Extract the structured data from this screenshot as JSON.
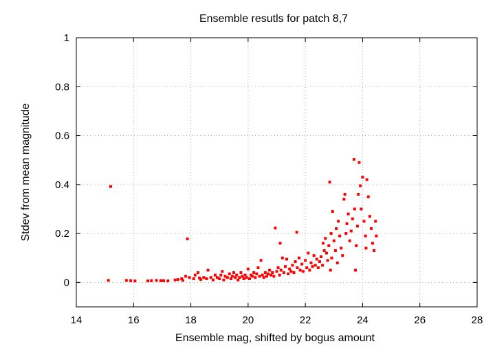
{
  "chart_data": {
    "type": "scatter",
    "title": "Ensemble resutls for patch 8,7",
    "xlabel": "Ensemble mag, shifted by bogus amount",
    "ylabel": "Stdev from mean magnitude",
    "xlim": [
      14,
      28
    ],
    "ylim": [
      -0.1,
      1
    ],
    "xticks": [
      14,
      16,
      18,
      20,
      22,
      24,
      26,
      28
    ],
    "yticks": [
      0,
      0.2,
      0.4,
      0.6,
      0.8,
      1
    ],
    "ytick_labels": [
      "0",
      "0.2",
      "0.4",
      "0.6",
      "0.8",
      "1"
    ],
    "grid": true,
    "marker_color": "#ff0000",
    "series": [
      {
        "points": [
          [
            15.12,
            0.008
          ],
          [
            15.2,
            0.392
          ],
          [
            15.75,
            0.008
          ],
          [
            15.9,
            0.007
          ],
          [
            16.05,
            0.006
          ],
          [
            16.5,
            0.006
          ],
          [
            16.62,
            0.007
          ],
          [
            16.8,
            0.008
          ],
          [
            16.95,
            0.007
          ],
          [
            17.05,
            0.007
          ],
          [
            17.2,
            0.006
          ],
          [
            17.45,
            0.01
          ],
          [
            17.55,
            0.012
          ],
          [
            17.68,
            0.015
          ],
          [
            17.72,
            0.008
          ],
          [
            17.82,
            0.025
          ],
          [
            17.88,
            0.178
          ],
          [
            17.95,
            0.02
          ],
          [
            18.1,
            0.015
          ],
          [
            18.15,
            0.03
          ],
          [
            18.25,
            0.04
          ],
          [
            18.3,
            0.018
          ],
          [
            18.35,
            0.012
          ],
          [
            18.45,
            0.02
          ],
          [
            18.55,
            0.015
          ],
          [
            18.6,
            0.05
          ],
          [
            18.7,
            0.02
          ],
          [
            18.78,
            0.01
          ],
          [
            18.85,
            0.03
          ],
          [
            18.92,
            0.02
          ],
          [
            19.0,
            0.015
          ],
          [
            19.05,
            0.03
          ],
          [
            19.1,
            0.045
          ],
          [
            19.15,
            0.01
          ],
          [
            19.2,
            0.025
          ],
          [
            19.28,
            0.02
          ],
          [
            19.35,
            0.035
          ],
          [
            19.4,
            0.015
          ],
          [
            19.45,
            0.025
          ],
          [
            19.5,
            0.04
          ],
          [
            19.55,
            0.02
          ],
          [
            19.6,
            0.03
          ],
          [
            19.65,
            0.01
          ],
          [
            19.7,
            0.02
          ],
          [
            19.75,
            0.04
          ],
          [
            19.8,
            0.025
          ],
          [
            19.85,
            0.015
          ],
          [
            19.9,
            0.03
          ],
          [
            19.95,
            0.02
          ],
          [
            20.0,
            0.055
          ],
          [
            20.05,
            0.015
          ],
          [
            20.1,
            0.03
          ],
          [
            20.15,
            0.025
          ],
          [
            20.2,
            0.04
          ],
          [
            20.25,
            0.02
          ],
          [
            20.3,
            0.035
          ],
          [
            20.35,
            0.06
          ],
          [
            20.4,
            0.025
          ],
          [
            20.45,
            0.09
          ],
          [
            20.5,
            0.03
          ],
          [
            20.55,
            0.02
          ],
          [
            20.6,
            0.04
          ],
          [
            20.65,
            0.025
          ],
          [
            20.7,
            0.035
          ],
          [
            20.75,
            0.05
          ],
          [
            20.8,
            0.03
          ],
          [
            20.85,
            0.04
          ],
          [
            20.9,
            0.025
          ],
          [
            20.95,
            0.222
          ],
          [
            21.0,
            0.045
          ],
          [
            21.05,
            0.06
          ],
          [
            21.1,
            0.03
          ],
          [
            21.12,
            0.16
          ],
          [
            21.15,
            0.05
          ],
          [
            21.2,
            0.1
          ],
          [
            21.25,
            0.04
          ],
          [
            21.3,
            0.065
          ],
          [
            21.35,
            0.095
          ],
          [
            21.4,
            0.035
          ],
          [
            21.45,
            0.055
          ],
          [
            21.5,
            0.045
          ],
          [
            21.55,
            0.07
          ],
          [
            21.6,
            0.04
          ],
          [
            21.65,
            0.085
          ],
          [
            21.7,
            0.205
          ],
          [
            21.72,
            0.06
          ],
          [
            21.78,
            0.1
          ],
          [
            21.82,
            0.05
          ],
          [
            21.88,
            0.075
          ],
          [
            21.92,
            0.045
          ],
          [
            22.0,
            0.09
          ],
          [
            22.05,
            0.06
          ],
          [
            22.1,
            0.12
          ],
          [
            22.15,
            0.05
          ],
          [
            22.2,
            0.08
          ],
          [
            22.25,
            0.065
          ],
          [
            22.3,
            0.11
          ],
          [
            22.35,
            0.07
          ],
          [
            22.4,
            0.095
          ],
          [
            22.45,
            0.06
          ],
          [
            22.5,
            0.085
          ],
          [
            22.55,
            0.105
          ],
          [
            22.6,
            0.07
          ],
          [
            22.62,
            0.16
          ],
          [
            22.66,
            0.13
          ],
          [
            22.7,
            0.18
          ],
          [
            22.74,
            0.12
          ],
          [
            22.78,
            0.09
          ],
          [
            22.82,
            0.15
          ],
          [
            22.85,
            0.41
          ],
          [
            22.88,
            0.05
          ],
          [
            22.9,
            0.2
          ],
          [
            22.92,
            0.1
          ],
          [
            22.95,
            0.29
          ],
          [
            23.0,
            0.17
          ],
          [
            23.05,
            0.13
          ],
          [
            23.08,
            0.22
          ],
          [
            23.12,
            0.08
          ],
          [
            23.15,
            0.25
          ],
          [
            23.2,
            0.19
          ],
          [
            23.25,
            0.14
          ],
          [
            23.3,
            0.11
          ],
          [
            23.35,
            0.34
          ],
          [
            23.38,
            0.36
          ],
          [
            23.42,
            0.2
          ],
          [
            23.45,
            0.24
          ],
          [
            23.5,
            0.28
          ],
          [
            23.55,
            0.17
          ],
          [
            23.6,
            0.21
          ],
          [
            23.65,
            0.26
          ],
          [
            23.7,
            0.503
          ],
          [
            23.72,
            0.3
          ],
          [
            23.75,
            0.05
          ],
          [
            23.78,
            0.15
          ],
          [
            23.82,
            0.23
          ],
          [
            23.85,
            0.36
          ],
          [
            23.88,
            0.49
          ],
          [
            23.92,
            0.395
          ],
          [
            23.95,
            0.3
          ],
          [
            24.0,
            0.43
          ],
          [
            24.05,
            0.25
          ],
          [
            24.1,
            0.19
          ],
          [
            24.12,
            0.14
          ],
          [
            24.15,
            0.42
          ],
          [
            24.2,
            0.35
          ],
          [
            24.25,
            0.27
          ],
          [
            24.3,
            0.22
          ],
          [
            24.35,
            0.16
          ],
          [
            24.4,
            0.13
          ],
          [
            24.45,
            0.25
          ],
          [
            24.48,
            0.19
          ]
        ]
      }
    ]
  }
}
